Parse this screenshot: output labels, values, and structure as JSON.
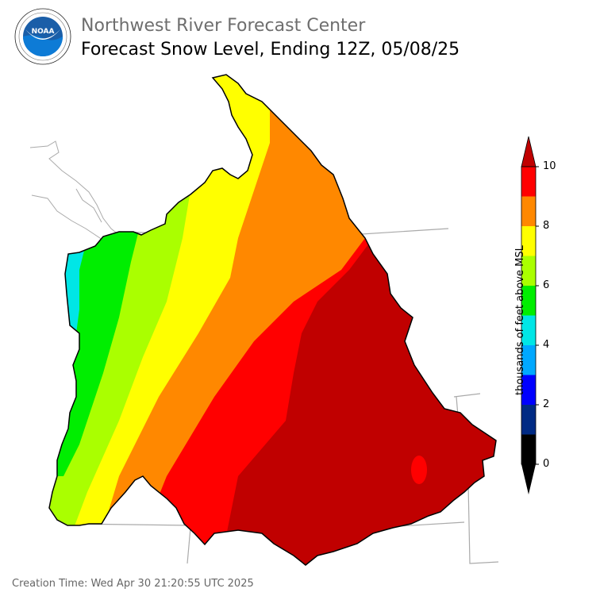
{
  "header": {
    "org_title": "Northwest River Forecast Center",
    "map_title": "Forecast Snow Level, Ending 12Z, 05/08/25"
  },
  "logo": {
    "text": "NOAA",
    "ring_text": "NATIONAL OCEANIC AND ATMOSPHERIC ADMINISTRATION · U.S. DEPARTMENT OF COMMERCE",
    "icon": "noaa-seal-icon"
  },
  "legend": {
    "axis_label": "thousands of feet above MSL",
    "ticks": [
      "0",
      "2",
      "4",
      "6",
      "8",
      "10"
    ],
    "colors": [
      "#000000",
      "#002a84",
      "#0000ff",
      "#00a8ff",
      "#00e6e6",
      "#00ee00",
      "#aaff00",
      "#ffff00",
      "#ff8800",
      "#ff0000",
      "#c00000"
    ]
  },
  "footer": {
    "creation_time": "Creation Time: Wed Apr 30 21:20:55 UTC 2025"
  }
}
